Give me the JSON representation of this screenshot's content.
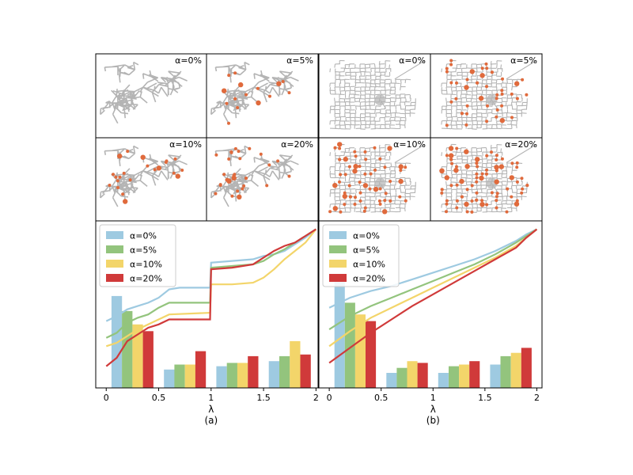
{
  "colors": {
    "a0": "#9ecae1",
    "a5": "#93c47d",
    "a10": "#f3d56a",
    "a20": "#d03a3a",
    "network": "#b4b4b4",
    "highlight": "#e06a3c"
  },
  "graph_panels": [
    {
      "graph": "tree",
      "label": "α=0%",
      "markers": 0
    },
    {
      "graph": "tree",
      "label": "α=5%",
      "markers": 16
    },
    {
      "graph": "tree",
      "label": "α=10%",
      "markers": 22
    },
    {
      "graph": "tree",
      "label": "α=20%",
      "markers": 30
    },
    {
      "graph": "grid",
      "label": "α=0%",
      "markers": 0
    },
    {
      "graph": "grid",
      "label": "α=5%",
      "markers": 45
    },
    {
      "graph": "grid",
      "label": "α=10%",
      "markers": 60
    },
    {
      "graph": "grid",
      "label": "α=20%",
      "markers": 85
    }
  ],
  "chart_data": [
    {
      "type": "bar",
      "caption": "(a)",
      "xlabel": "λ",
      "ylabel": "",
      "xlim": [
        -0.1,
        2.02
      ],
      "ylim": [
        0,
        1
      ],
      "xticks": [
        {
          "value": 0,
          "label": "0"
        },
        {
          "value": 0.5,
          "label": "0.5"
        },
        {
          "value": 1,
          "label": "1"
        },
        {
          "value": 1.5,
          "label": "1.5"
        },
        {
          "value": 2,
          "label": "2"
        }
      ],
      "legend": {
        "position": "top-left",
        "entries": [
          "α=0%",
          "α=5%",
          "α=10%",
          "α=20%"
        ]
      },
      "bin_starts": [
        0.05,
        0.55,
        1.05,
        1.55
      ],
      "bar_width": 0.1,
      "series": [
        {
          "name": "α=0%",
          "color_key": "a0",
          "bars": [
            0.55,
            0.11,
            0.13,
            0.16
          ],
          "curve": [
            [
              0,
              0.4
            ],
            [
              0.1,
              0.43
            ],
            [
              0.2,
              0.47
            ],
            [
              0.3,
              0.49
            ],
            [
              0.4,
              0.51
            ],
            [
              0.5,
              0.54
            ],
            [
              0.6,
              0.59
            ],
            [
              0.7,
              0.6
            ],
            [
              0.99,
              0.6
            ],
            [
              1,
              0.75
            ],
            [
              1.2,
              0.76
            ],
            [
              1.4,
              0.77
            ],
            [
              1.5,
              0.79
            ],
            [
              1.6,
              0.8
            ],
            [
              1.7,
              0.82
            ],
            [
              1.8,
              0.86
            ],
            [
              1.9,
              0.9
            ],
            [
              2,
              0.95
            ]
          ]
        },
        {
          "name": "α=5%",
          "color_key": "a5",
          "bars": [
            0.46,
            0.14,
            0.15,
            0.19
          ],
          "curve": [
            [
              0,
              0.3
            ],
            [
              0.1,
              0.33
            ],
            [
              0.2,
              0.39
            ],
            [
              0.3,
              0.42
            ],
            [
              0.4,
              0.44
            ],
            [
              0.5,
              0.48
            ],
            [
              0.6,
              0.51
            ],
            [
              0.99,
              0.51
            ],
            [
              1,
              0.72
            ],
            [
              1.2,
              0.73
            ],
            [
              1.4,
              0.74
            ],
            [
              1.5,
              0.76
            ],
            [
              1.6,
              0.8
            ],
            [
              1.7,
              0.83
            ],
            [
              1.8,
              0.87
            ],
            [
              1.9,
              0.91
            ],
            [
              2,
              0.95
            ]
          ]
        },
        {
          "name": "α=10%",
          "color_key": "a10",
          "bars": [
            0.38,
            0.14,
            0.15,
            0.28
          ],
          "curve": [
            [
              0,
              0.25
            ],
            [
              0.1,
              0.27
            ],
            [
              0.2,
              0.31
            ],
            [
              0.3,
              0.35
            ],
            [
              0.4,
              0.38
            ],
            [
              0.5,
              0.41
            ],
            [
              0.6,
              0.44
            ],
            [
              0.99,
              0.45
            ],
            [
              1,
              0.62
            ],
            [
              1.2,
              0.62
            ],
            [
              1.4,
              0.63
            ],
            [
              1.5,
              0.66
            ],
            [
              1.6,
              0.71
            ],
            [
              1.7,
              0.77
            ],
            [
              1.8,
              0.82
            ],
            [
              1.9,
              0.87
            ],
            [
              2,
              0.95
            ]
          ]
        },
        {
          "name": "α=20%",
          "color_key": "a20",
          "bars": [
            0.34,
            0.22,
            0.19,
            0.2
          ],
          "curve": [
            [
              0,
              0.13
            ],
            [
              0.1,
              0.18
            ],
            [
              0.2,
              0.28
            ],
            [
              0.3,
              0.32
            ],
            [
              0.4,
              0.36
            ],
            [
              0.5,
              0.38
            ],
            [
              0.6,
              0.41
            ],
            [
              0.99,
              0.41
            ],
            [
              1,
              0.71
            ],
            [
              1.2,
              0.72
            ],
            [
              1.4,
              0.74
            ],
            [
              1.5,
              0.78
            ],
            [
              1.6,
              0.82
            ],
            [
              1.7,
              0.85
            ],
            [
              1.8,
              0.87
            ],
            [
              1.9,
              0.91
            ],
            [
              2,
              0.95
            ]
          ]
        }
      ]
    },
    {
      "type": "bar",
      "caption": "(b)",
      "xlabel": "λ",
      "ylabel": "",
      "xlim": [
        -0.1,
        2.05
      ],
      "ylim": [
        0,
        1
      ],
      "xticks": [
        {
          "value": 0,
          "label": "0"
        },
        {
          "value": 0.5,
          "label": "0.5"
        },
        {
          "value": 1,
          "label": "1"
        },
        {
          "value": 1.5,
          "label": "1.5"
        },
        {
          "value": 2,
          "label": "2"
        }
      ],
      "legend": {
        "position": "top-left",
        "entries": [
          "α=0%",
          "α=5%",
          "α=10%",
          "α=20%"
        ]
      },
      "bin_starts": [
        0.05,
        0.55,
        1.05,
        1.55
      ],
      "bar_width": 0.1,
      "series": [
        {
          "name": "α=0%",
          "color_key": "a0",
          "bars": [
            0.64,
            0.09,
            0.09,
            0.14
          ],
          "curve": [
            [
              0,
              0.48
            ],
            [
              0.2,
              0.54
            ],
            [
              0.4,
              0.58
            ],
            [
              0.6,
              0.61
            ],
            [
              0.8,
              0.65
            ],
            [
              1,
              0.69
            ],
            [
              1.2,
              0.73
            ],
            [
              1.4,
              0.77
            ],
            [
              1.6,
              0.82
            ],
            [
              1.8,
              0.88
            ],
            [
              1.9,
              0.92
            ],
            [
              2,
              0.95
            ]
          ]
        },
        {
          "name": "α=5%",
          "color_key": "a5",
          "bars": [
            0.51,
            0.12,
            0.13,
            0.19
          ],
          "curve": [
            [
              0,
              0.35
            ],
            [
              0.2,
              0.43
            ],
            [
              0.4,
              0.49
            ],
            [
              0.6,
              0.54
            ],
            [
              0.8,
              0.59
            ],
            [
              1,
              0.64
            ],
            [
              1.2,
              0.69
            ],
            [
              1.4,
              0.74
            ],
            [
              1.6,
              0.8
            ],
            [
              1.8,
              0.87
            ],
            [
              1.9,
              0.91
            ],
            [
              2,
              0.95
            ]
          ]
        },
        {
          "name": "α=10%",
          "color_key": "a10",
          "bars": [
            0.44,
            0.16,
            0.14,
            0.21
          ],
          "curve": [
            [
              0,
              0.25
            ],
            [
              0.2,
              0.34
            ],
            [
              0.4,
              0.42
            ],
            [
              0.6,
              0.48
            ],
            [
              0.8,
              0.54
            ],
            [
              1,
              0.6
            ],
            [
              1.2,
              0.66
            ],
            [
              1.4,
              0.72
            ],
            [
              1.6,
              0.78
            ],
            [
              1.8,
              0.85
            ],
            [
              1.9,
              0.9
            ],
            [
              2,
              0.95
            ]
          ]
        },
        {
          "name": "α=20%",
          "color_key": "a20",
          "bars": [
            0.4,
            0.15,
            0.16,
            0.24
          ],
          "curve": [
            [
              0,
              0.15
            ],
            [
              0.2,
              0.24
            ],
            [
              0.4,
              0.33
            ],
            [
              0.6,
              0.41
            ],
            [
              0.8,
              0.49
            ],
            [
              1,
              0.56
            ],
            [
              1.2,
              0.63
            ],
            [
              1.4,
              0.7
            ],
            [
              1.6,
              0.77
            ],
            [
              1.8,
              0.84
            ],
            [
              1.9,
              0.9
            ],
            [
              2,
              0.95
            ]
          ]
        }
      ]
    }
  ]
}
